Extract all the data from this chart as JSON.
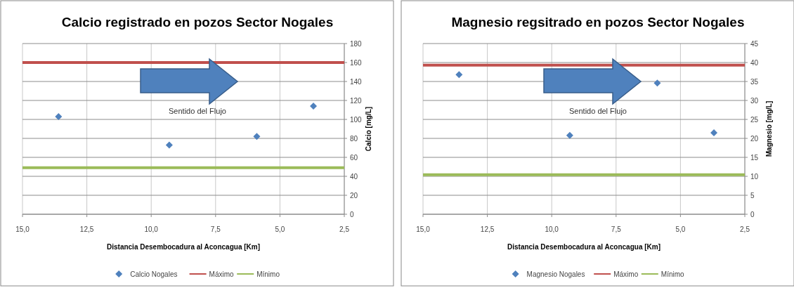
{
  "chart_data": [
    {
      "type": "scatter",
      "title": "Calcio registrado en pozos Sector Nogales",
      "xlabel": "Distancia Desembocadura al Aconcagua [Km]",
      "ylabel": "Calcio [mg/L]",
      "annotations": [
        "Sentido del Flujo"
      ],
      "xlim": [
        15,
        2.5
      ],
      "ylim": [
        0,
        180
      ],
      "xticks": [
        {
          "value": 15,
          "label": "15,0"
        },
        {
          "value": 12.5,
          "label": "12,5"
        },
        {
          "value": 10,
          "label": "10,0"
        },
        {
          "value": 7.5,
          "label": "7,5"
        },
        {
          "value": 5,
          "label": "5,0"
        },
        {
          "value": 2.5,
          "label": "2,5"
        }
      ],
      "yticks": [
        0,
        20,
        40,
        60,
        80,
        100,
        120,
        140,
        160,
        180
      ],
      "grid": true,
      "legend": "bottom",
      "series": [
        {
          "name": "Calcio Nogales",
          "marker": "diamond",
          "color": "#4f81bd",
          "x": [
            13.6,
            9.3,
            5.9,
            3.7
          ],
          "values": [
            103,
            73,
            82,
            114
          ]
        },
        {
          "name": "Máximo",
          "type": "line",
          "color": "#c0504d",
          "x": [
            15,
            2.5
          ],
          "values": [
            160,
            160
          ]
        },
        {
          "name": "Mínimo",
          "type": "line",
          "color": "#9bbb59",
          "x": [
            15,
            2.5
          ],
          "values": [
            49,
            49
          ]
        }
      ]
    },
    {
      "type": "scatter",
      "title": "Magnesio regsitrado en pozos Sector Nogales",
      "xlabel": "Distancia Desembocadura al Aconcagua [Km]",
      "ylabel": "Magnesio [mg/L]",
      "annotations": [
        "Sentido del Flujo"
      ],
      "xlim": [
        15,
        2.5
      ],
      "ylim": [
        0,
        45
      ],
      "xticks": [
        {
          "value": 15,
          "label": "15,0"
        },
        {
          "value": 12.5,
          "label": "12,5"
        },
        {
          "value": 10,
          "label": "10,0"
        },
        {
          "value": 7.5,
          "label": "7,5"
        },
        {
          "value": 5,
          "label": "5,0"
        },
        {
          "value": 2.5,
          "label": "2,5"
        }
      ],
      "yticks": [
        0,
        5,
        10,
        15,
        20,
        25,
        30,
        35,
        40,
        45
      ],
      "grid": true,
      "legend": "bottom",
      "series": [
        {
          "name": "Magnesio Nogales",
          "marker": "diamond",
          "color": "#4f81bd",
          "x": [
            13.6,
            9.3,
            5.9,
            3.7
          ],
          "values": [
            36.8,
            20.8,
            34.6,
            21.5
          ]
        },
        {
          "name": "Máximo",
          "type": "line",
          "color": "#c0504d",
          "x": [
            15,
            2.5
          ],
          "values": [
            39.3,
            39.3
          ]
        },
        {
          "name": "Mínimo",
          "type": "line",
          "color": "#9bbb59",
          "x": [
            15,
            2.5
          ],
          "values": [
            10.4,
            10.4
          ]
        }
      ]
    }
  ]
}
